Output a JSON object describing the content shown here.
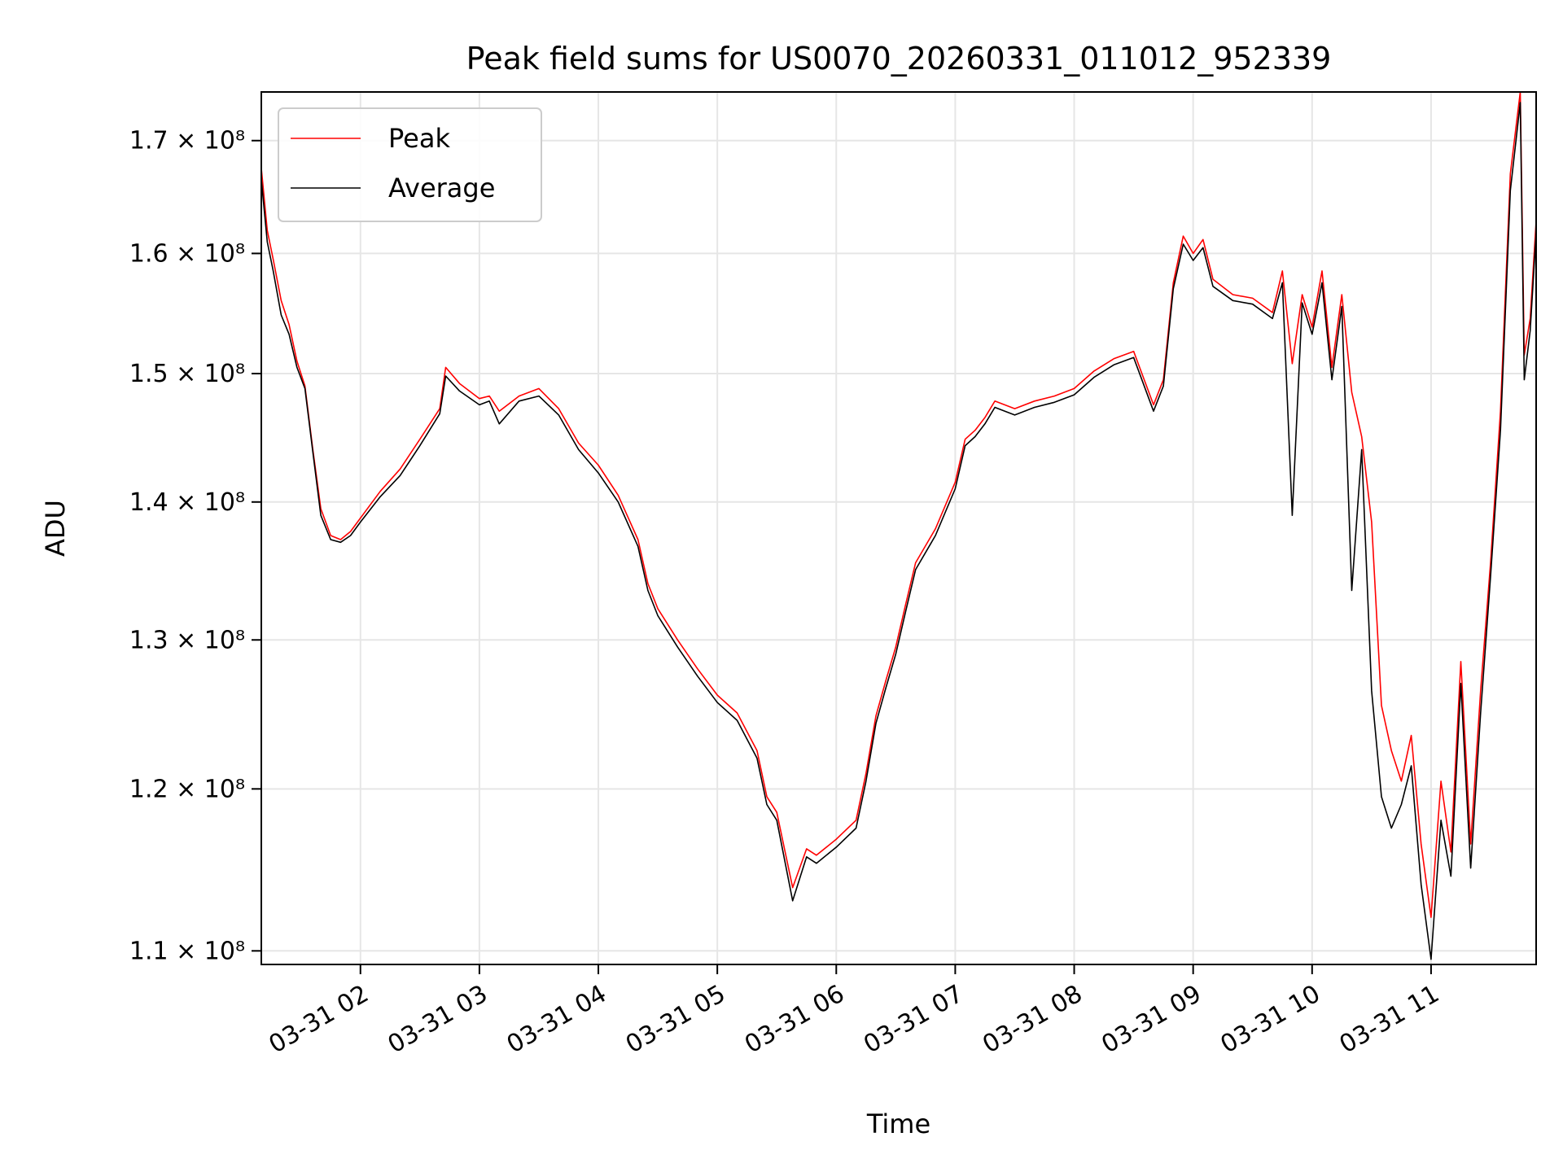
{
  "chart_data": {
    "type": "line",
    "title": "Peak field sums for US0070_20260331_011012_952339",
    "xlabel": "Time",
    "ylabel": "ADU",
    "x_ticks": [
      {
        "value": "2026-03-31T02:00",
        "label": "03-31 02"
      },
      {
        "value": "2026-03-31T03:00",
        "label": "03-31 03"
      },
      {
        "value": "2026-03-31T04:00",
        "label": "03-31 04"
      },
      {
        "value": "2026-03-31T05:00",
        "label": "03-31 05"
      },
      {
        "value": "2026-03-31T06:00",
        "label": "03-31 06"
      },
      {
        "value": "2026-03-31T07:00",
        "label": "03-31 07"
      },
      {
        "value": "2026-03-31T08:00",
        "label": "03-31 08"
      },
      {
        "value": "2026-03-31T09:00",
        "label": "03-31 09"
      },
      {
        "value": "2026-03-31T10:00",
        "label": "03-31 10"
      },
      {
        "value": "2026-03-31T11:00",
        "label": "03-31 11"
      }
    ],
    "y_ticks": [
      {
        "value": 110000000,
        "label": "1.1 × 10⁸"
      },
      {
        "value": 120000000,
        "label": "1.2 × 10⁸"
      },
      {
        "value": 130000000,
        "label": "1.3 × 10⁸"
      },
      {
        "value": 140000000,
        "label": "1.4 × 10⁸"
      },
      {
        "value": 150000000,
        "label": "1.5 × 10⁸"
      },
      {
        "value": 160000000,
        "label": "1.6 × 10⁸"
      },
      {
        "value": 170000000,
        "label": "1.7 × 10⁸"
      }
    ],
    "y_scale": "log",
    "xlim": [
      "2026-03-31T01:10",
      "2026-03-31T11:53"
    ],
    "ylim": [
      109200000,
      174500000
    ],
    "grid": true,
    "legend": "upper left",
    "series": [
      {
        "name": "Peak",
        "color": "#ff0000",
        "points": [
          [
            "2026-03-31T01:10",
            167500000
          ],
          [
            "2026-03-31T01:13",
            162000000
          ],
          [
            "2026-03-31T01:16",
            159500000
          ],
          [
            "2026-03-31T01:20",
            156000000
          ],
          [
            "2026-03-31T01:24",
            154000000
          ],
          [
            "2026-03-31T01:28",
            151000000
          ],
          [
            "2026-03-31T01:32",
            149000000
          ],
          [
            "2026-03-31T01:36",
            144000000
          ],
          [
            "2026-03-31T01:40",
            139500000
          ],
          [
            "2026-03-31T01:45",
            137500000
          ],
          [
            "2026-03-31T01:50",
            137200000
          ],
          [
            "2026-03-31T01:55",
            137800000
          ],
          [
            "2026-03-31T02:00",
            138800000
          ],
          [
            "2026-03-31T02:10",
            140800000
          ],
          [
            "2026-03-31T02:20",
            142500000
          ],
          [
            "2026-03-31T02:30",
            144800000
          ],
          [
            "2026-03-31T02:40",
            147200000
          ],
          [
            "2026-03-31T02:43",
            150500000
          ],
          [
            "2026-03-31T02:50",
            149200000
          ],
          [
            "2026-03-31T03:00",
            148000000
          ],
          [
            "2026-03-31T03:05",
            148200000
          ],
          [
            "2026-03-31T03:10",
            147000000
          ],
          [
            "2026-03-31T03:20",
            148200000
          ],
          [
            "2026-03-31T03:30",
            148800000
          ],
          [
            "2026-03-31T03:40",
            147200000
          ],
          [
            "2026-03-31T03:50",
            144500000
          ],
          [
            "2026-03-31T04:00",
            142800000
          ],
          [
            "2026-03-31T04:10",
            140500000
          ],
          [
            "2026-03-31T04:20",
            137200000
          ],
          [
            "2026-03-31T04:25",
            134000000
          ],
          [
            "2026-03-31T04:30",
            132200000
          ],
          [
            "2026-03-31T04:40",
            130000000
          ],
          [
            "2026-03-31T04:50",
            128000000
          ],
          [
            "2026-03-31T05:00",
            126200000
          ],
          [
            "2026-03-31T05:10",
            125000000
          ],
          [
            "2026-03-31T05:20",
            122500000
          ],
          [
            "2026-03-31T05:25",
            119500000
          ],
          [
            "2026-03-31T05:30",
            118500000
          ],
          [
            "2026-03-31T05:38",
            113800000
          ],
          [
            "2026-03-31T05:45",
            116200000
          ],
          [
            "2026-03-31T05:50",
            115800000
          ],
          [
            "2026-03-31T06:00",
            116800000
          ],
          [
            "2026-03-31T06:10",
            118000000
          ],
          [
            "2026-03-31T06:15",
            121000000
          ],
          [
            "2026-03-31T06:20",
            124800000
          ],
          [
            "2026-03-31T06:25",
            127200000
          ],
          [
            "2026-03-31T06:30",
            129500000
          ],
          [
            "2026-03-31T06:35",
            132500000
          ],
          [
            "2026-03-31T06:40",
            135500000
          ],
          [
            "2026-03-31T06:50",
            138000000
          ],
          [
            "2026-03-31T07:00",
            141500000
          ],
          [
            "2026-03-31T07:05",
            144800000
          ],
          [
            "2026-03-31T07:10",
            145500000
          ],
          [
            "2026-03-31T07:15",
            146500000
          ],
          [
            "2026-03-31T07:20",
            147800000
          ],
          [
            "2026-03-31T07:30",
            147200000
          ],
          [
            "2026-03-31T07:40",
            147800000
          ],
          [
            "2026-03-31T07:50",
            148200000
          ],
          [
            "2026-03-31T08:00",
            148800000
          ],
          [
            "2026-03-31T08:10",
            150200000
          ],
          [
            "2026-03-31T08:20",
            151200000
          ],
          [
            "2026-03-31T08:30",
            151800000
          ],
          [
            "2026-03-31T08:40",
            147500000
          ],
          [
            "2026-03-31T08:45",
            149500000
          ],
          [
            "2026-03-31T08:50",
            157500000
          ],
          [
            "2026-03-31T08:55",
            161500000
          ],
          [
            "2026-03-31T09:00",
            160000000
          ],
          [
            "2026-03-31T09:05",
            161200000
          ],
          [
            "2026-03-31T09:10",
            157800000
          ],
          [
            "2026-03-31T09:20",
            156500000
          ],
          [
            "2026-03-31T09:30",
            156200000
          ],
          [
            "2026-03-31T09:40",
            155000000
          ],
          [
            "2026-03-31T09:45",
            158500000
          ],
          [
            "2026-03-31T09:50",
            150800000
          ],
          [
            "2026-03-31T09:55",
            156500000
          ],
          [
            "2026-03-31T10:00",
            153800000
          ],
          [
            "2026-03-31T10:05",
            158500000
          ],
          [
            "2026-03-31T10:10",
            150500000
          ],
          [
            "2026-03-31T10:15",
            156500000
          ],
          [
            "2026-03-31T10:20",
            148500000
          ],
          [
            "2026-03-31T10:25",
            145000000
          ],
          [
            "2026-03-31T10:30",
            138500000
          ],
          [
            "2026-03-31T10:35",
            125500000
          ],
          [
            "2026-03-31T10:40",
            122500000
          ],
          [
            "2026-03-31T10:45",
            120500000
          ],
          [
            "2026-03-31T10:50",
            123500000
          ],
          [
            "2026-03-31T10:55",
            116500000
          ],
          [
            "2026-03-31T11:00",
            112000000
          ],
          [
            "2026-03-31T11:05",
            120500000
          ],
          [
            "2026-03-31T11:10",
            116000000
          ],
          [
            "2026-03-31T11:15",
            128500000
          ],
          [
            "2026-03-31T11:20",
            116500000
          ],
          [
            "2026-03-31T11:25",
            126500000
          ],
          [
            "2026-03-31T11:30",
            135500000
          ],
          [
            "2026-03-31T11:35",
            147000000
          ],
          [
            "2026-03-31T11:40",
            167000000
          ],
          [
            "2026-03-31T11:45",
            174500000
          ],
          [
            "2026-03-31T11:47",
            151500000
          ],
          [
            "2026-03-31T11:50",
            154500000
          ],
          [
            "2026-03-31T11:53",
            162800000
          ]
        ]
      },
      {
        "name": "Average",
        "color": "#000000",
        "points": [
          [
            "2026-03-31T01:10",
            166500000
          ],
          [
            "2026-03-31T01:13",
            161000000
          ],
          [
            "2026-03-31T01:16",
            158500000
          ],
          [
            "2026-03-31T01:20",
            154800000
          ],
          [
            "2026-03-31T01:24",
            153200000
          ],
          [
            "2026-03-31T01:28",
            150500000
          ],
          [
            "2026-03-31T01:32",
            148800000
          ],
          [
            "2026-03-31T01:36",
            143800000
          ],
          [
            "2026-03-31T01:40",
            139000000
          ],
          [
            "2026-03-31T01:45",
            137200000
          ],
          [
            "2026-03-31T01:50",
            137000000
          ],
          [
            "2026-03-31T01:55",
            137500000
          ],
          [
            "2026-03-31T02:00",
            138500000
          ],
          [
            "2026-03-31T02:10",
            140400000
          ],
          [
            "2026-03-31T02:20",
            142000000
          ],
          [
            "2026-03-31T02:30",
            144300000
          ],
          [
            "2026-03-31T02:40",
            146800000
          ],
          [
            "2026-03-31T02:43",
            149800000
          ],
          [
            "2026-03-31T02:50",
            148600000
          ],
          [
            "2026-03-31T03:00",
            147500000
          ],
          [
            "2026-03-31T03:05",
            147800000
          ],
          [
            "2026-03-31T03:10",
            146000000
          ],
          [
            "2026-03-31T03:20",
            147800000
          ],
          [
            "2026-03-31T03:30",
            148200000
          ],
          [
            "2026-03-31T03:40",
            146700000
          ],
          [
            "2026-03-31T03:50",
            144000000
          ],
          [
            "2026-03-31T04:00",
            142200000
          ],
          [
            "2026-03-31T04:10",
            140000000
          ],
          [
            "2026-03-31T04:20",
            136700000
          ],
          [
            "2026-03-31T04:25",
            133500000
          ],
          [
            "2026-03-31T04:30",
            131700000
          ],
          [
            "2026-03-31T04:40",
            129500000
          ],
          [
            "2026-03-31T04:50",
            127500000
          ],
          [
            "2026-03-31T05:00",
            125700000
          ],
          [
            "2026-03-31T05:10",
            124500000
          ],
          [
            "2026-03-31T05:20",
            122000000
          ],
          [
            "2026-03-31T05:25",
            119000000
          ],
          [
            "2026-03-31T05:30",
            118000000
          ],
          [
            "2026-03-31T05:38",
            113000000
          ],
          [
            "2026-03-31T05:45",
            115700000
          ],
          [
            "2026-03-31T05:50",
            115300000
          ],
          [
            "2026-03-31T06:00",
            116300000
          ],
          [
            "2026-03-31T06:10",
            117500000
          ],
          [
            "2026-03-31T06:15",
            120500000
          ],
          [
            "2026-03-31T06:20",
            124300000
          ],
          [
            "2026-03-31T06:25",
            126700000
          ],
          [
            "2026-03-31T06:30",
            129000000
          ],
          [
            "2026-03-31T06:35",
            132000000
          ],
          [
            "2026-03-31T06:40",
            135000000
          ],
          [
            "2026-03-31T06:50",
            137500000
          ],
          [
            "2026-03-31T07:00",
            141000000
          ],
          [
            "2026-03-31T07:05",
            144300000
          ],
          [
            "2026-03-31T07:10",
            145000000
          ],
          [
            "2026-03-31T07:15",
            146000000
          ],
          [
            "2026-03-31T07:20",
            147300000
          ],
          [
            "2026-03-31T07:30",
            146700000
          ],
          [
            "2026-03-31T07:40",
            147300000
          ],
          [
            "2026-03-31T07:50",
            147700000
          ],
          [
            "2026-03-31T08:00",
            148300000
          ],
          [
            "2026-03-31T08:10",
            149700000
          ],
          [
            "2026-03-31T08:20",
            150700000
          ],
          [
            "2026-03-31T08:30",
            151300000
          ],
          [
            "2026-03-31T08:40",
            147000000
          ],
          [
            "2026-03-31T08:45",
            149000000
          ],
          [
            "2026-03-31T08:50",
            157000000
          ],
          [
            "2026-03-31T08:55",
            160800000
          ],
          [
            "2026-03-31T09:00",
            159400000
          ],
          [
            "2026-03-31T09:05",
            160500000
          ],
          [
            "2026-03-31T09:10",
            157200000
          ],
          [
            "2026-03-31T09:20",
            156000000
          ],
          [
            "2026-03-31T09:30",
            155700000
          ],
          [
            "2026-03-31T09:40",
            154500000
          ],
          [
            "2026-03-31T09:45",
            157500000
          ],
          [
            "2026-03-31T09:50",
            139000000
          ],
          [
            "2026-03-31T09:55",
            155800000
          ],
          [
            "2026-03-31T10:00",
            153200000
          ],
          [
            "2026-03-31T10:05",
            157500000
          ],
          [
            "2026-03-31T10:10",
            149500000
          ],
          [
            "2026-03-31T10:15",
            155500000
          ],
          [
            "2026-03-31T10:20",
            133500000
          ],
          [
            "2026-03-31T10:25",
            144000000
          ],
          [
            "2026-03-31T10:30",
            126500000
          ],
          [
            "2026-03-31T10:35",
            119500000
          ],
          [
            "2026-03-31T10:40",
            117500000
          ],
          [
            "2026-03-31T10:45",
            119000000
          ],
          [
            "2026-03-31T10:50",
            121500000
          ],
          [
            "2026-03-31T10:55",
            114000000
          ],
          [
            "2026-03-31T11:00",
            109500000
          ],
          [
            "2026-03-31T11:05",
            118000000
          ],
          [
            "2026-03-31T11:10",
            114500000
          ],
          [
            "2026-03-31T11:15",
            127000000
          ],
          [
            "2026-03-31T11:20",
            115000000
          ],
          [
            "2026-03-31T11:25",
            125000000
          ],
          [
            "2026-03-31T11:30",
            134500000
          ],
          [
            "2026-03-31T11:35",
            145500000
          ],
          [
            "2026-03-31T11:40",
            165500000
          ],
          [
            "2026-03-31T11:45",
            173500000
          ],
          [
            "2026-03-31T11:47",
            149500000
          ],
          [
            "2026-03-31T11:50",
            153500000
          ],
          [
            "2026-03-31T11:53",
            161800000
          ]
        ]
      }
    ]
  }
}
